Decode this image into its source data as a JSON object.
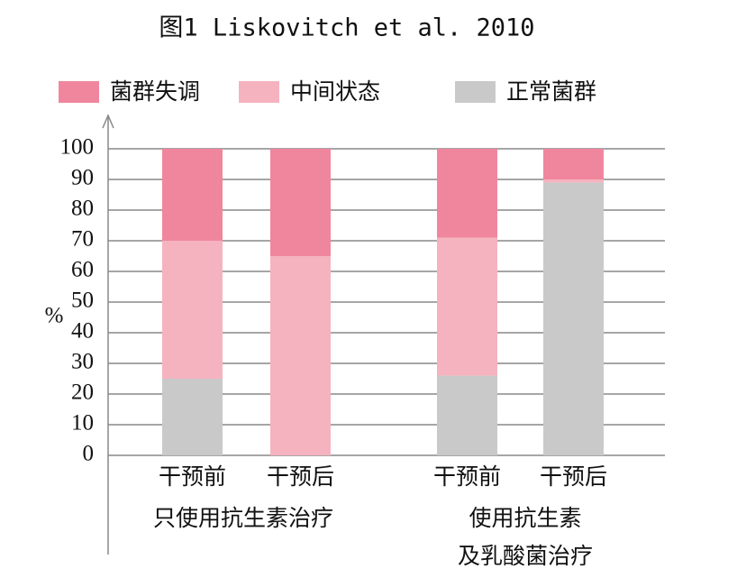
{
  "chart_data": {
    "type": "stacked_bar",
    "title": "图1 Liskovitch et al. 2010",
    "ylabel": "%",
    "categories": [
      "干预前",
      "干预后",
      "干预前",
      "干预后"
    ],
    "groups": [
      [
        "只使用抗生素治疗"
      ],
      [
        "使用抗生素",
        "及乳酸菌治疗"
      ]
    ],
    "series": [
      {
        "name": "正常菌群",
        "color": "#c9c9c9",
        "values": [
          25,
          0,
          26,
          89
        ]
      },
      {
        "name": "中间状态",
        "color": "#f5b3bf",
        "values": [
          45,
          65,
          45,
          1
        ]
      },
      {
        "name": "菌群失调",
        "color": "#f0869d",
        "values": [
          30,
          35,
          29,
          10
        ]
      }
    ],
    "legend_order": [
      2,
      1,
      0
    ],
    "ylim": [
      0,
      100
    ],
    "yticks": [
      0,
      10,
      20,
      30,
      40,
      50,
      60,
      70,
      80,
      90,
      100
    ],
    "grid": true
  }
}
